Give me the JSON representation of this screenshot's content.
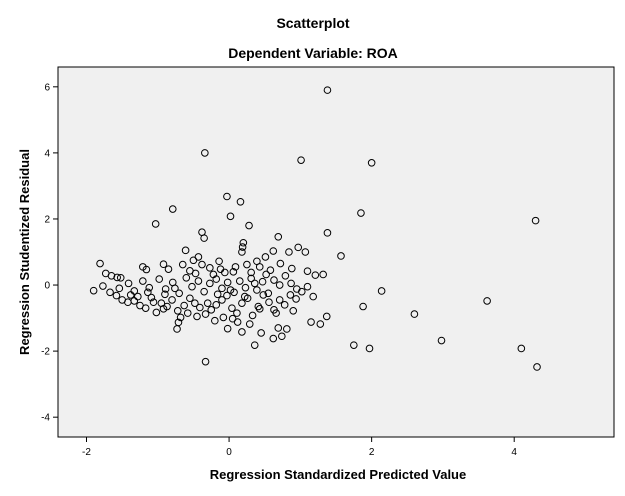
{
  "chart_data": {
    "type": "scatter",
    "title": "Scatterplot",
    "subtitle": "Dependent Variable: ROA",
    "xlabel": "Regression Standardized Predicted Value",
    "ylabel": "Regression Studentized Residual",
    "xlim": [
      -2.4,
      5.4
    ],
    "ylim": [
      -4.6,
      6.6
    ],
    "xticks": [
      -2,
      0,
      2,
      4
    ],
    "yticks": [
      -4,
      -2,
      0,
      2,
      4,
      6
    ],
    "grid": false,
    "points": [
      [
        1.38,
        5.9
      ],
      [
        -0.34,
        4.0
      ],
      [
        1.01,
        3.78
      ],
      [
        2.0,
        3.7
      ],
      [
        -0.79,
        2.3
      ],
      [
        -1.03,
        1.85
      ],
      [
        -0.03,
        2.68
      ],
      [
        0.16,
        2.52
      ],
      [
        0.02,
        2.08
      ],
      [
        1.85,
        2.18
      ],
      [
        4.3,
        1.95
      ],
      [
        0.28,
        1.8
      ],
      [
        -0.38,
        1.6
      ],
      [
        -0.35,
        1.42
      ],
      [
        1.38,
        1.58
      ],
      [
        0.69,
        1.46
      ],
      [
        0.97,
        1.14
      ],
      [
        1.07,
        1.0
      ],
      [
        0.84,
        1.0
      ],
      [
        1.57,
        0.88
      ],
      [
        -1.81,
        0.65
      ],
      [
        -0.61,
        1.05
      ],
      [
        0.2,
        1.28
      ],
      [
        0.19,
        1.15
      ],
      [
        0.18,
        1.0
      ],
      [
        0.62,
        1.03
      ],
      [
        -0.43,
        0.85
      ],
      [
        -0.14,
        0.72
      ],
      [
        0.39,
        0.72
      ],
      [
        1.32,
        0.32
      ],
      [
        -1.65,
        0.28
      ],
      [
        -1.57,
        0.23
      ],
      [
        -1.52,
        0.22
      ],
      [
        -1.73,
        0.35
      ],
      [
        -1.21,
        0.55
      ],
      [
        -1.16,
        0.47
      ],
      [
        -0.92,
        0.63
      ],
      [
        -0.85,
        0.48
      ],
      [
        -0.55,
        0.43
      ],
      [
        -0.47,
        0.35
      ],
      [
        -0.27,
        0.52
      ],
      [
        -0.06,
        0.38
      ],
      [
        0.06,
        0.4
      ],
      [
        0.31,
        0.38
      ],
      [
        0.58,
        0.45
      ],
      [
        0.88,
        0.5
      ],
      [
        1.1,
        0.42
      ],
      [
        1.21,
        0.3
      ],
      [
        -1.9,
        -0.17
      ],
      [
        -1.77,
        -0.03
      ],
      [
        -1.67,
        -0.22
      ],
      [
        -1.58,
        -0.32
      ],
      [
        -1.5,
        -0.45
      ],
      [
        -1.42,
        -0.52
      ],
      [
        -1.33,
        -0.48
      ],
      [
        -1.25,
        -0.62
      ],
      [
        -1.17,
        -0.7
      ],
      [
        -1.09,
        -0.38
      ],
      [
        -1.02,
        -0.83
      ],
      [
        -0.95,
        -0.55
      ],
      [
        -0.87,
        -0.65
      ],
      [
        -0.8,
        -0.45
      ],
      [
        -0.72,
        -0.78
      ],
      [
        -0.68,
        -0.98
      ],
      [
        -0.71,
        -1.13
      ],
      [
        -0.73,
        -1.33
      ],
      [
        -0.63,
        -0.62
      ],
      [
        -0.55,
        -0.4
      ],
      [
        -0.48,
        -0.55
      ],
      [
        -0.41,
        -0.68
      ],
      [
        -0.33,
        -0.88
      ],
      [
        -0.25,
        -0.75
      ],
      [
        -0.18,
        -0.6
      ],
      [
        -0.1,
        -0.45
      ],
      [
        -0.03,
        -0.32
      ],
      [
        0.04,
        -0.7
      ],
      [
        0.11,
        -0.85
      ],
      [
        0.18,
        -0.55
      ],
      [
        0.26,
        -0.4
      ],
      [
        0.33,
        -0.92
      ],
      [
        0.41,
        -0.65
      ],
      [
        0.48,
        -0.3
      ],
      [
        0.56,
        -0.52
      ],
      [
        0.63,
        -0.75
      ],
      [
        0.71,
        -0.45
      ],
      [
        0.78,
        -0.6
      ],
      [
        0.86,
        -0.3
      ],
      [
        0.94,
        -0.42
      ],
      [
        1.02,
        -0.2
      ],
      [
        1.1,
        -0.05
      ],
      [
        -0.02,
        -1.32
      ],
      [
        0.18,
        -1.42
      ],
      [
        0.29,
        -1.18
      ],
      [
        0.45,
        -1.45
      ],
      [
        0.62,
        -1.62
      ],
      [
        0.69,
        -1.3
      ],
      [
        0.74,
        -1.55
      ],
      [
        0.81,
        -1.33
      ],
      [
        1.15,
        -1.12
      ],
      [
        1.28,
        -1.18
      ],
      [
        1.37,
        -0.95
      ],
      [
        0.36,
        -1.82
      ],
      [
        -0.33,
        -2.32
      ],
      [
        1.75,
        -1.82
      ],
      [
        1.97,
        -1.92
      ],
      [
        1.88,
        -0.65
      ],
      [
        2.14,
        -0.18
      ],
      [
        2.6,
        -0.88
      ],
      [
        2.98,
        -1.68
      ],
      [
        3.62,
        -0.48
      ],
      [
        4.1,
        -1.92
      ],
      [
        4.32,
        -2.48
      ],
      [
        -1.41,
        0.05
      ],
      [
        -1.33,
        -0.18
      ],
      [
        -1.21,
        0.12
      ],
      [
        -1.12,
        -0.08
      ],
      [
        -0.98,
        0.18
      ],
      [
        -0.89,
        -0.12
      ],
      [
        -0.79,
        0.08
      ],
      [
        -0.7,
        -0.25
      ],
      [
        -0.6,
        0.22
      ],
      [
        -0.52,
        -0.05
      ],
      [
        -0.43,
        0.12
      ],
      [
        -0.35,
        -0.2
      ],
      [
        -0.27,
        0.05
      ],
      [
        -0.18,
        0.18
      ],
      [
        -0.1,
        -0.1
      ],
      [
        -0.02,
        0.08
      ],
      [
        0.07,
        -0.22
      ],
      [
        0.15,
        0.12
      ],
      [
        0.23,
        -0.08
      ],
      [
        0.31,
        0.2
      ],
      [
        0.39,
        -0.15
      ],
      [
        0.47,
        0.1
      ],
      [
        0.55,
        -0.25
      ],
      [
        0.63,
        0.15
      ],
      [
        0.71,
        0.0
      ],
      [
        0.79,
        0.28
      ],
      [
        0.87,
        0.05
      ],
      [
        0.95,
        -0.12
      ],
      [
        -1.28,
        -0.35
      ],
      [
        -1.06,
        -0.52
      ],
      [
        -0.9,
        -0.28
      ],
      [
        -0.76,
        -0.1
      ],
      [
        -0.65,
        0.62
      ],
      [
        -0.5,
        0.75
      ],
      [
        -0.38,
        0.62
      ],
      [
        -0.22,
        0.32
      ],
      [
        -0.12,
        0.48
      ],
      [
        0.09,
        0.55
      ],
      [
        0.25,
        0.62
      ],
      [
        0.43,
        0.55
      ],
      [
        0.51,
        0.85
      ],
      [
        0.72,
        0.65
      ],
      [
        0.52,
        0.32
      ],
      [
        0.36,
        0.05
      ],
      [
        -0.58,
        -0.85
      ],
      [
        -0.45,
        -0.95
      ],
      [
        -0.2,
        -1.08
      ],
      [
        -0.08,
        -0.98
      ],
      [
        0.12,
        -1.12
      ],
      [
        0.05,
        -1.02
      ],
      [
        -0.92,
        -0.72
      ],
      [
        -1.14,
        -0.22
      ],
      [
        -1.38,
        -0.3
      ],
      [
        -1.54,
        -0.1
      ],
      [
        -0.3,
        -0.55
      ],
      [
        0.22,
        -0.35
      ],
      [
        0.43,
        -0.72
      ],
      [
        0.66,
        -0.85
      ],
      [
        0.9,
        -0.78
      ],
      [
        1.18,
        -0.35
      ],
      [
        -0.16,
        -0.28
      ],
      [
        0.02,
        -0.15
      ]
    ]
  }
}
